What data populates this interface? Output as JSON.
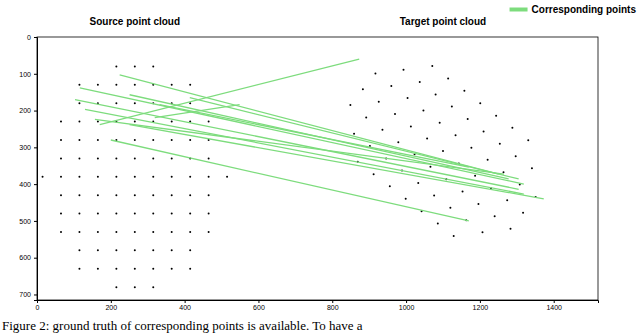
{
  "chart_data": {
    "type": "scatter",
    "caption": "Figure 2: ground truth of corresponding points is available. To have a",
    "xlim": [
      0,
      1520
    ],
    "ylim": [
      715,
      0
    ],
    "xticks": [
      0,
      200,
      400,
      600,
      800,
      1000,
      1200,
      1400
    ],
    "yticks": [
      0,
      100,
      200,
      300,
      400,
      500,
      600,
      700
    ],
    "legend": "upper right",
    "series": [
      {
        "name": "Source point cloud",
        "type": "scatter",
        "color": "#000000",
        "marker": "dot",
        "x": [
          215,
          265,
          315,
          115,
          165,
          215,
          265,
          315,
          365,
          415,
          115,
          165,
          215,
          265,
          315,
          365,
          415,
          65,
          115,
          165,
          215,
          265,
          315,
          365,
          415,
          465,
          65,
          115,
          165,
          215,
          265,
          315,
          365,
          415,
          465,
          65,
          115,
          165,
          215,
          265,
          315,
          365,
          415,
          465,
          15,
          65,
          115,
          165,
          215,
          265,
          315,
          365,
          415,
          465,
          515,
          65,
          115,
          165,
          215,
          265,
          315,
          365,
          415,
          465,
          65,
          115,
          165,
          215,
          265,
          315,
          365,
          415,
          465,
          65,
          115,
          165,
          215,
          265,
          315,
          365,
          415,
          465,
          115,
          165,
          215,
          265,
          315,
          365,
          415,
          115,
          165,
          215,
          265,
          315,
          365,
          415,
          215,
          265,
          315
        ],
        "values": [
          80,
          80,
          80,
          130,
          130,
          130,
          130,
          130,
          130,
          130,
          180,
          180,
          180,
          180,
          180,
          180,
          180,
          230,
          230,
          230,
          230,
          230,
          230,
          230,
          230,
          230,
          280,
          280,
          280,
          280,
          280,
          280,
          280,
          280,
          280,
          330,
          330,
          330,
          330,
          330,
          330,
          330,
          330,
          330,
          380,
          380,
          380,
          380,
          380,
          380,
          380,
          380,
          380,
          380,
          380,
          430,
          430,
          430,
          430,
          430,
          430,
          430,
          430,
          430,
          480,
          480,
          480,
          480,
          480,
          480,
          480,
          480,
          480,
          530,
          530,
          530,
          530,
          530,
          530,
          530,
          530,
          530,
          580,
          580,
          580,
          580,
          580,
          580,
          580,
          630,
          630,
          630,
          630,
          630,
          630,
          630,
          680,
          680,
          680
        ]
      },
      {
        "name": "Target point cloud",
        "type": "scatter",
        "color": "#000000",
        "marker": "dot",
        "x": [
          1071,
          1114,
          1158,
          1201,
          1244,
          1288,
          1331,
          993,
          1037,
          1080,
          1124,
          1167,
          1210,
          1254,
          1297,
          1341,
          917,
          960,
          1004,
          1047,
          1091,
          1134,
          1177,
          1221,
          1264,
          1308,
          1351,
          883,
          926,
          970,
          1013,
          1057,
          1100,
          1143,
          1187,
          1230,
          1274,
          1317,
          849,
          892,
          936,
          979,
          1023,
          1066,
          1109,
          1153,
          1196,
          1240,
          1283,
          859,
          902,
          946,
          989,
          1033,
          1076,
          1120,
          1163,
          1207,
          869,
          912,
          956,
          999,
          1042,
          1086,
          1129
        ],
        "values": [
          79,
          113,
          146,
          180,
          214,
          247,
          281,
          89,
          122,
          156,
          189,
          223,
          257,
          290,
          324,
          357,
          99,
          133,
          166,
          200,
          233,
          267,
          301,
          334,
          368,
          401,
          435,
          142,
          176,
          209,
          243,
          276,
          310,
          344,
          377,
          411,
          444,
          478,
          185,
          219,
          252,
          286,
          319,
          353,
          387,
          420,
          454,
          487,
          521,
          263,
          296,
          330,
          363,
          397,
          431,
          464,
          498,
          531,
          339,
          373,
          406,
          440,
          474,
          507,
          541
        ]
      },
      {
        "name": "Corresponding points",
        "type": "segment",
        "color": "#7ddc7d",
        "line_style": "solid",
        "x": [
          116,
          103,
          130,
          157,
          224,
          251,
          332,
          414,
          170,
          319,
          251,
          200
        ],
        "values": [
          138,
          170,
          197,
          224,
          103,
          157,
          184,
          165,
          238,
          219,
          238,
          280
        ],
        "x_end": [
          1319,
          1305,
          1319,
          1265,
          1251,
          1278,
          1170,
          1305,
          873,
          549,
          1373,
          1170
        ],
        "values_end": [
          400,
          414,
          427,
          373,
          373,
          386,
          354,
          386,
          60,
          184,
          440,
          500
        ]
      }
    ]
  }
}
